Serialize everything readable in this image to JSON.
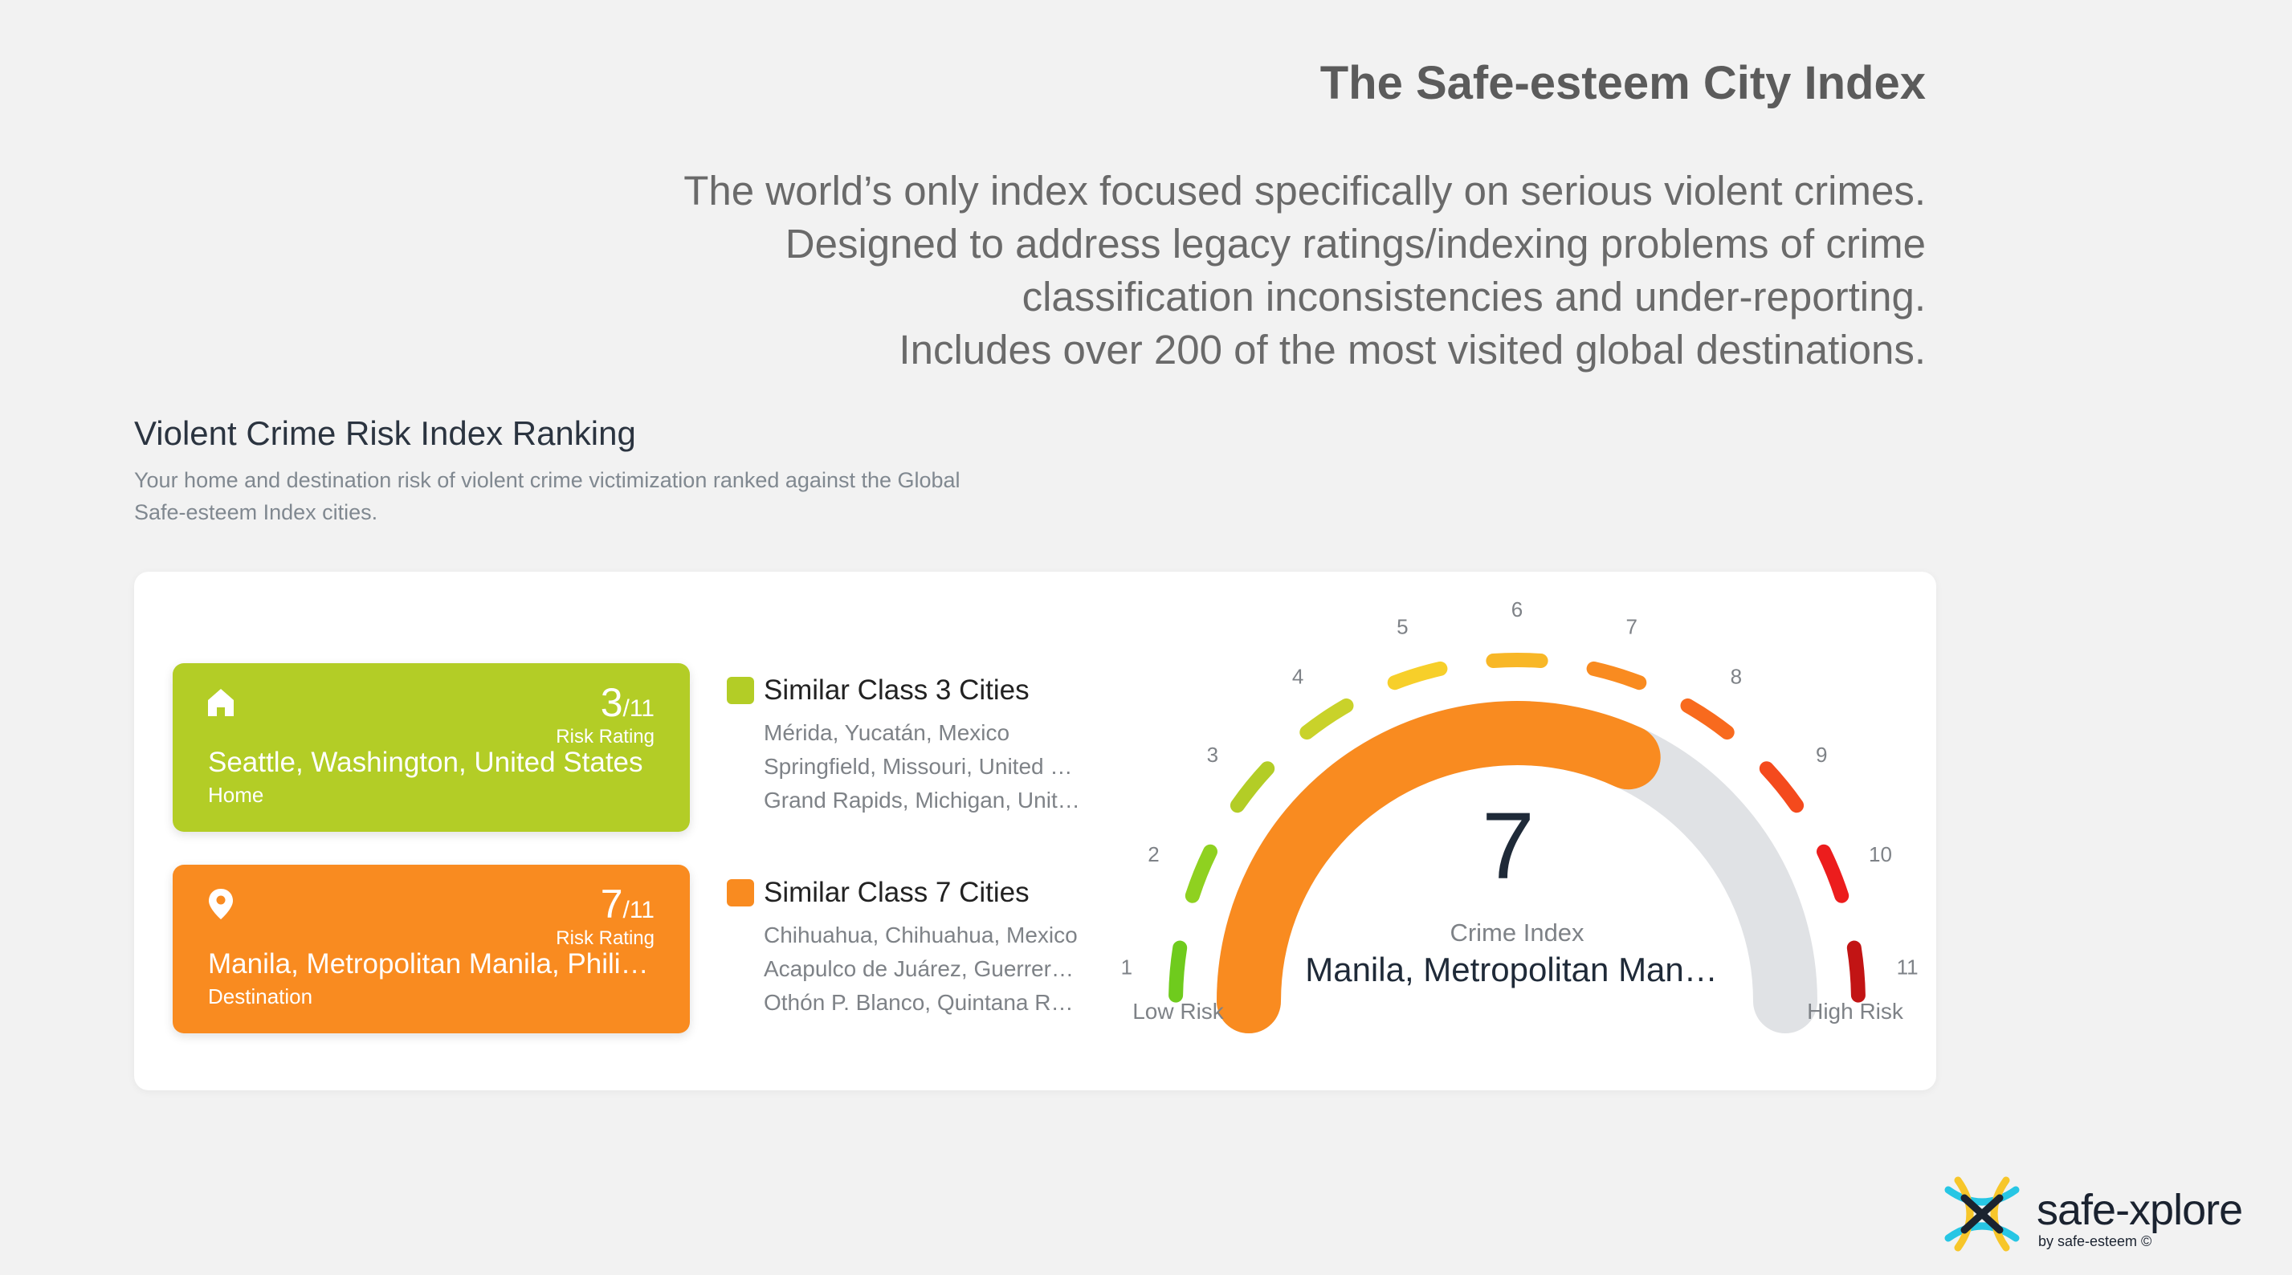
{
  "header": {
    "title": "The Safe-esteem City Index",
    "intro_lines": [
      "The world’s only index focused specifically on serious violent crimes.",
      "Designed to address legacy ratings/indexing problems of crime",
      "classification inconsistencies and under-reporting.",
      "Includes over 200 of the most visited global destinations."
    ]
  },
  "section": {
    "title": "Violent Crime Risk Index Ranking",
    "subtitle": "Your home and destination risk of violent crime victimization ranked against the Global Safe-esteem Index cities."
  },
  "home_card": {
    "icon": "home-icon",
    "rating": "3",
    "rating_max": "/11",
    "rating_label": "Risk Rating",
    "city": "Seattle, Washington, United States",
    "role": "Home",
    "color": "#b3cd26"
  },
  "destination_card": {
    "icon": "map-pin-icon",
    "rating": "7",
    "rating_max": "/11",
    "rating_label": "Risk Rating",
    "city": "Manila, Metropolitan Manila, Philippines",
    "role": "Destination",
    "color": "#f98b20"
  },
  "similar_home": {
    "title": "Similar Class 3 Cities",
    "color": "#b3cd26",
    "cities": [
      "Mérida, Yucatán, Mexico",
      "Springfield, Missouri, United States",
      "Grand Rapids, Michigan, United States"
    ]
  },
  "similar_destination": {
    "title": "Similar Class 7 Cities",
    "color": "#f98b20",
    "cities": [
      "Chihuahua, Chihuahua, Mexico",
      "Acapulco de Juárez, Guerrero, Mexico",
      "Othón P. Blanco, Quintana Roo, Mexico"
    ]
  },
  "gauge": {
    "value": 7,
    "max": 11,
    "value_text": "7",
    "label": "Crime Index",
    "city": "Manila, Metropolitan Manila, Philippines",
    "low_label": "Low Risk",
    "high_label": "High Risk",
    "fill_color": "#f98b20",
    "track_color": "#e0e2e5",
    "scale": [
      {
        "n": "1",
        "color": "#6fcb1d"
      },
      {
        "n": "2",
        "color": "#8fd120"
      },
      {
        "n": "3",
        "color": "#b3cd26"
      },
      {
        "n": "4",
        "color": "#c9d22a"
      },
      {
        "n": "5",
        "color": "#f7cf2a"
      },
      {
        "n": "6",
        "color": "#f8b727"
      },
      {
        "n": "7",
        "color": "#f98b20"
      },
      {
        "n": "8",
        "color": "#f86a1e"
      },
      {
        "n": "9",
        "color": "#f44a1d"
      },
      {
        "n": "10",
        "color": "#ec1d1d"
      },
      {
        "n": "11",
        "color": "#c21414"
      }
    ]
  },
  "logo": {
    "name": "safe-xplore",
    "by": "by safe-esteem ©"
  }
}
